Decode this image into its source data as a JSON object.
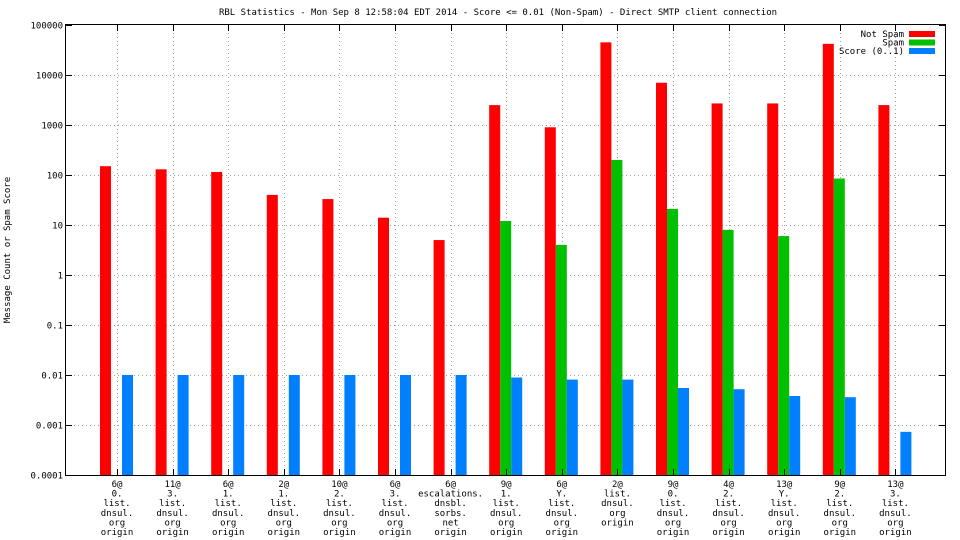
{
  "chart_data": {
    "type": "bar",
    "title": "RBL Statistics - Mon Sep  8 12:58:04 EDT 2014 - Score <= 0.01 (Non-Spam) - Direct SMTP client connection",
    "xlabel": "",
    "ylabel": "Message Count or Spam Score",
    "yscale": "log",
    "ylim": [
      0.0001,
      100000
    ],
    "grid": true,
    "legend_position": "top-right",
    "y_ticks": [
      "100000",
      "10000",
      "1000",
      "100",
      "10",
      "1",
      "0.1",
      "0.01",
      "0.001",
      "0.0001"
    ],
    "categories": [
      [
        "6@",
        "0.",
        "list.",
        "dnsul.",
        "org",
        "origin"
      ],
      [
        "11@",
        "3.",
        "list.",
        "dnsul.",
        "org",
        "origin"
      ],
      [
        "6@",
        "1.",
        "list.",
        "dnsul.",
        "org",
        "origin"
      ],
      [
        "2@",
        "1.",
        "list.",
        "dnsul.",
        "org",
        "origin"
      ],
      [
        "10@",
        "2.",
        "list.",
        "dnsul.",
        "org",
        "origin"
      ],
      [
        "6@",
        "3.",
        "list.",
        "dnsul.",
        "org",
        "origin"
      ],
      [
        "6@",
        "escalations.",
        "dnsbl.",
        "sorbs.",
        "net",
        "origin"
      ],
      [
        "9@",
        "1.",
        "list.",
        "dnsul.",
        "org",
        "origin"
      ],
      [
        "6@",
        "Y.",
        "list.",
        "dnsul.",
        "org",
        "origin"
      ],
      [
        "2@",
        "list.",
        "dnsul.",
        "org",
        "origin"
      ],
      [
        "9@",
        "0.",
        "list.",
        "dnsul.",
        "org",
        "origin"
      ],
      [
        "4@",
        "2.",
        "list.",
        "dnsul.",
        "org",
        "origin"
      ],
      [
        "13@",
        "Y.",
        "list.",
        "dnsul.",
        "org",
        "origin"
      ],
      [
        "9@",
        "2.",
        "list.",
        "dnsul.",
        "org",
        "origin"
      ],
      [
        "13@",
        "3.",
        "list.",
        "dnsul.",
        "org",
        "origin"
      ]
    ],
    "series": [
      {
        "name": "Not Spam",
        "color": "#ff0000",
        "values": [
          150,
          130,
          115,
          40,
          33,
          14,
          5,
          2500,
          900,
          45000,
          7000,
          2700,
          2700,
          42000,
          2500
        ]
      },
      {
        "name": "Spam",
        "color": "#00c000",
        "values": [
          null,
          null,
          null,
          null,
          null,
          null,
          null,
          12,
          4,
          200,
          21,
          8,
          6,
          85,
          null
        ]
      },
      {
        "name": "Score (0..1)",
        "color": "#0080ff",
        "values": [
          0.01,
          0.01,
          0.01,
          0.01,
          0.01,
          0.01,
          0.01,
          0.0089,
          0.0081,
          0.0081,
          0.0055,
          0.0052,
          0.0038,
          0.0036,
          0.00073
        ]
      }
    ]
  }
}
